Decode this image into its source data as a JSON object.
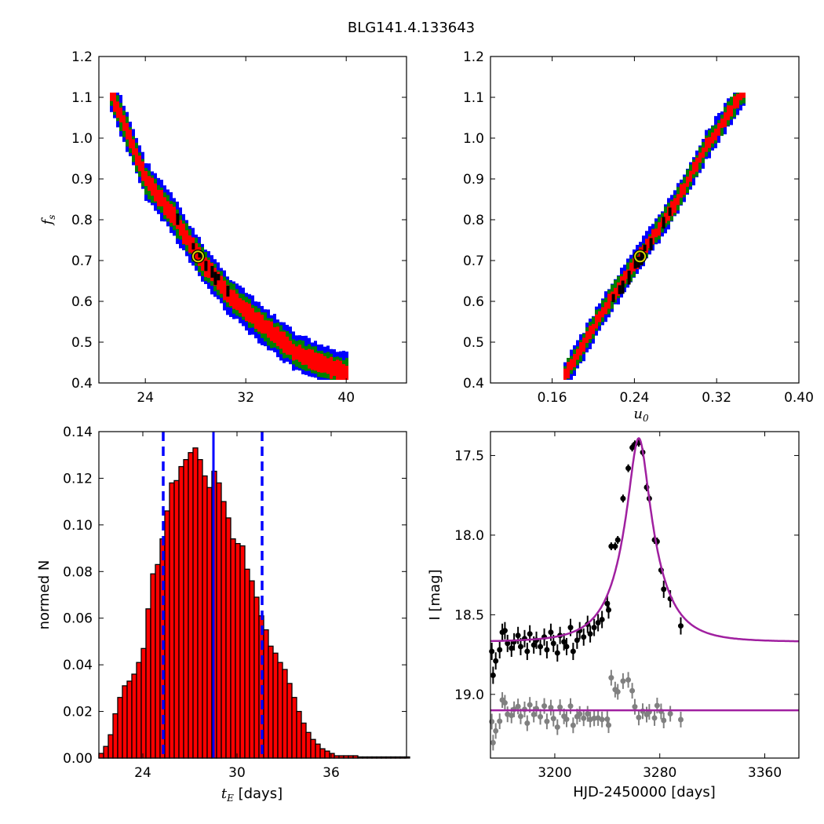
{
  "figure_title": "BLG141.4.133643",
  "chart_data": [
    {
      "panel": "top-left",
      "type": "heatmap",
      "xlabel": "",
      "ylabel": "f_s",
      "xlim": [
        20.3,
        44.8
      ],
      "ylim": [
        0.4,
        1.2
      ],
      "xticks": [
        "24",
        "32",
        "40"
      ],
      "yticks": [
        "0.4",
        "0.5",
        "0.6",
        "0.7",
        "0.8",
        "0.9",
        "1.0",
        "1.1",
        "1.2"
      ],
      "levels": [
        "black",
        "red",
        "green",
        "blue"
      ],
      "best_fit": {
        "x": 28.2,
        "y": 0.71
      },
      "ridge": [
        [
          21.3,
          1.11
        ],
        [
          22.5,
          1.02
        ],
        [
          24.0,
          0.9
        ],
        [
          26.0,
          0.82
        ],
        [
          28.2,
          0.71
        ],
        [
          30.5,
          0.62
        ],
        [
          33.0,
          0.55
        ],
        [
          36.0,
          0.475
        ],
        [
          38.5,
          0.44
        ],
        [
          40.0,
          0.425
        ]
      ]
    },
    {
      "panel": "top-right",
      "type": "heatmap",
      "xlabel": "u_0",
      "ylabel": "",
      "xlim": [
        0.1,
        0.4
      ],
      "ylim": [
        0.4,
        1.2
      ],
      "xticks": [
        "0.16",
        "0.24",
        "0.32",
        "0.40"
      ],
      "yticks": [
        "0.4",
        "0.5",
        "0.6",
        "0.7",
        "0.8",
        "0.9",
        "1.0",
        "1.1",
        "1.2"
      ],
      "levels": [
        "black",
        "red",
        "green",
        "blue"
      ],
      "best_fit": {
        "x": 0.2455,
        "y": 0.71
      },
      "ridge": [
        [
          0.173,
          0.42
        ],
        [
          0.19,
          0.49
        ],
        [
          0.21,
          0.58
        ],
        [
          0.2455,
          0.71
        ],
        [
          0.28,
          0.84
        ],
        [
          0.31,
          0.98
        ],
        [
          0.345,
          1.11
        ]
      ]
    },
    {
      "panel": "bottom-left",
      "type": "bar",
      "xlabel": "t_E [days]",
      "ylabel": "normed N",
      "xlim": [
        21.2,
        40.8
      ],
      "ylim": [
        0.0,
        0.14
      ],
      "xticks": [
        "24",
        "30",
        "36"
      ],
      "yticks": [
        "0.00",
        "0.02",
        "0.04",
        "0.06",
        "0.08",
        "0.10",
        "0.12",
        "0.14"
      ],
      "bin_start": 21.2,
      "bin_width": 0.3,
      "values": [
        0.002,
        0.005,
        0.01,
        0.019,
        0.026,
        0.031,
        0.033,
        0.036,
        0.041,
        0.047,
        0.064,
        0.079,
        0.083,
        0.094,
        0.106,
        0.118,
        0.119,
        0.125,
        0.128,
        0.131,
        0.133,
        0.128,
        0.121,
        0.116,
        0.123,
        0.118,
        0.11,
        0.103,
        0.094,
        0.092,
        0.091,
        0.081,
        0.076,
        0.069,
        0.061,
        0.055,
        0.048,
        0.045,
        0.041,
        0.038,
        0.032,
        0.026,
        0.02,
        0.015,
        0.011,
        0.008,
        0.006,
        0.004,
        0.003,
        0.002,
        0.001,
        0.001,
        0.001,
        0.001,
        0.001,
        0.0005,
        0.0005,
        0.0005,
        0.0005,
        0.0005,
        0.0005,
        0.0005,
        0.0005,
        0.0005,
        0.0005,
        0.0005
      ],
      "median_line": 28.5,
      "interval_lines": [
        25.3,
        31.6
      ]
    },
    {
      "panel": "bottom-right",
      "type": "scatter",
      "xlabel": "HJD-2450000 [days]",
      "ylabel": "I [mag]",
      "xlim": [
        3151,
        3386
      ],
      "ylim": [
        19.4,
        17.35
      ],
      "xticks": [
        "3200",
        "3280",
        "3360"
      ],
      "yticks": [
        "17.5",
        "18.0",
        "18.5",
        "19.0"
      ],
      "model": {
        "t0": 3264,
        "tE": 28.2,
        "u0": 0.2455,
        "fs": 0.71,
        "I_base": 18.67,
        "residual_level": 19.1
      },
      "data": [
        [
          3152,
          18.73
        ],
        [
          3153,
          18.88
        ],
        [
          3155,
          18.79
        ],
        [
          3158,
          18.72
        ],
        [
          3160,
          18.61
        ],
        [
          3162,
          18.6
        ],
        [
          3164,
          18.68
        ],
        [
          3167,
          18.71
        ],
        [
          3169,
          18.67
        ],
        [
          3172,
          18.63
        ],
        [
          3174,
          18.7
        ],
        [
          3177,
          18.65
        ],
        [
          3179,
          18.73
        ],
        [
          3181,
          18.62
        ],
        [
          3184,
          18.69
        ],
        [
          3186,
          18.66
        ],
        [
          3189,
          18.7
        ],
        [
          3192,
          18.64
        ],
        [
          3194,
          18.72
        ],
        [
          3197,
          18.61
        ],
        [
          3199,
          18.68
        ],
        [
          3202,
          18.74
        ],
        [
          3204,
          18.63
        ],
        [
          3207,
          18.67
        ],
        [
          3209,
          18.7
        ],
        [
          3212,
          18.58
        ],
        [
          3214,
          18.73
        ],
        [
          3217,
          18.66
        ],
        [
          3219,
          18.6
        ],
        [
          3222,
          18.64
        ],
        [
          3225,
          18.56
        ],
        [
          3227,
          18.62
        ],
        [
          3230,
          18.58
        ],
        [
          3233,
          18.55
        ],
        [
          3236,
          18.53
        ],
        [
          3240,
          18.43
        ],
        [
          3241,
          18.47
        ],
        [
          3243,
          18.07
        ],
        [
          3246,
          18.07
        ],
        [
          3248,
          18.03
        ],
        [
          3252,
          17.77
        ],
        [
          3256,
          17.58
        ],
        [
          3259,
          17.45
        ],
        [
          3261,
          17.43
        ],
        [
          3264,
          17.42
        ],
        [
          3267,
          17.48
        ],
        [
          3270,
          17.7
        ],
        [
          3272,
          17.77
        ],
        [
          3276,
          18.03
        ],
        [
          3278,
          18.04
        ],
        [
          3281,
          18.22
        ],
        [
          3283,
          18.34
        ],
        [
          3288,
          18.4
        ],
        [
          3296,
          18.57
        ]
      ]
    }
  ]
}
